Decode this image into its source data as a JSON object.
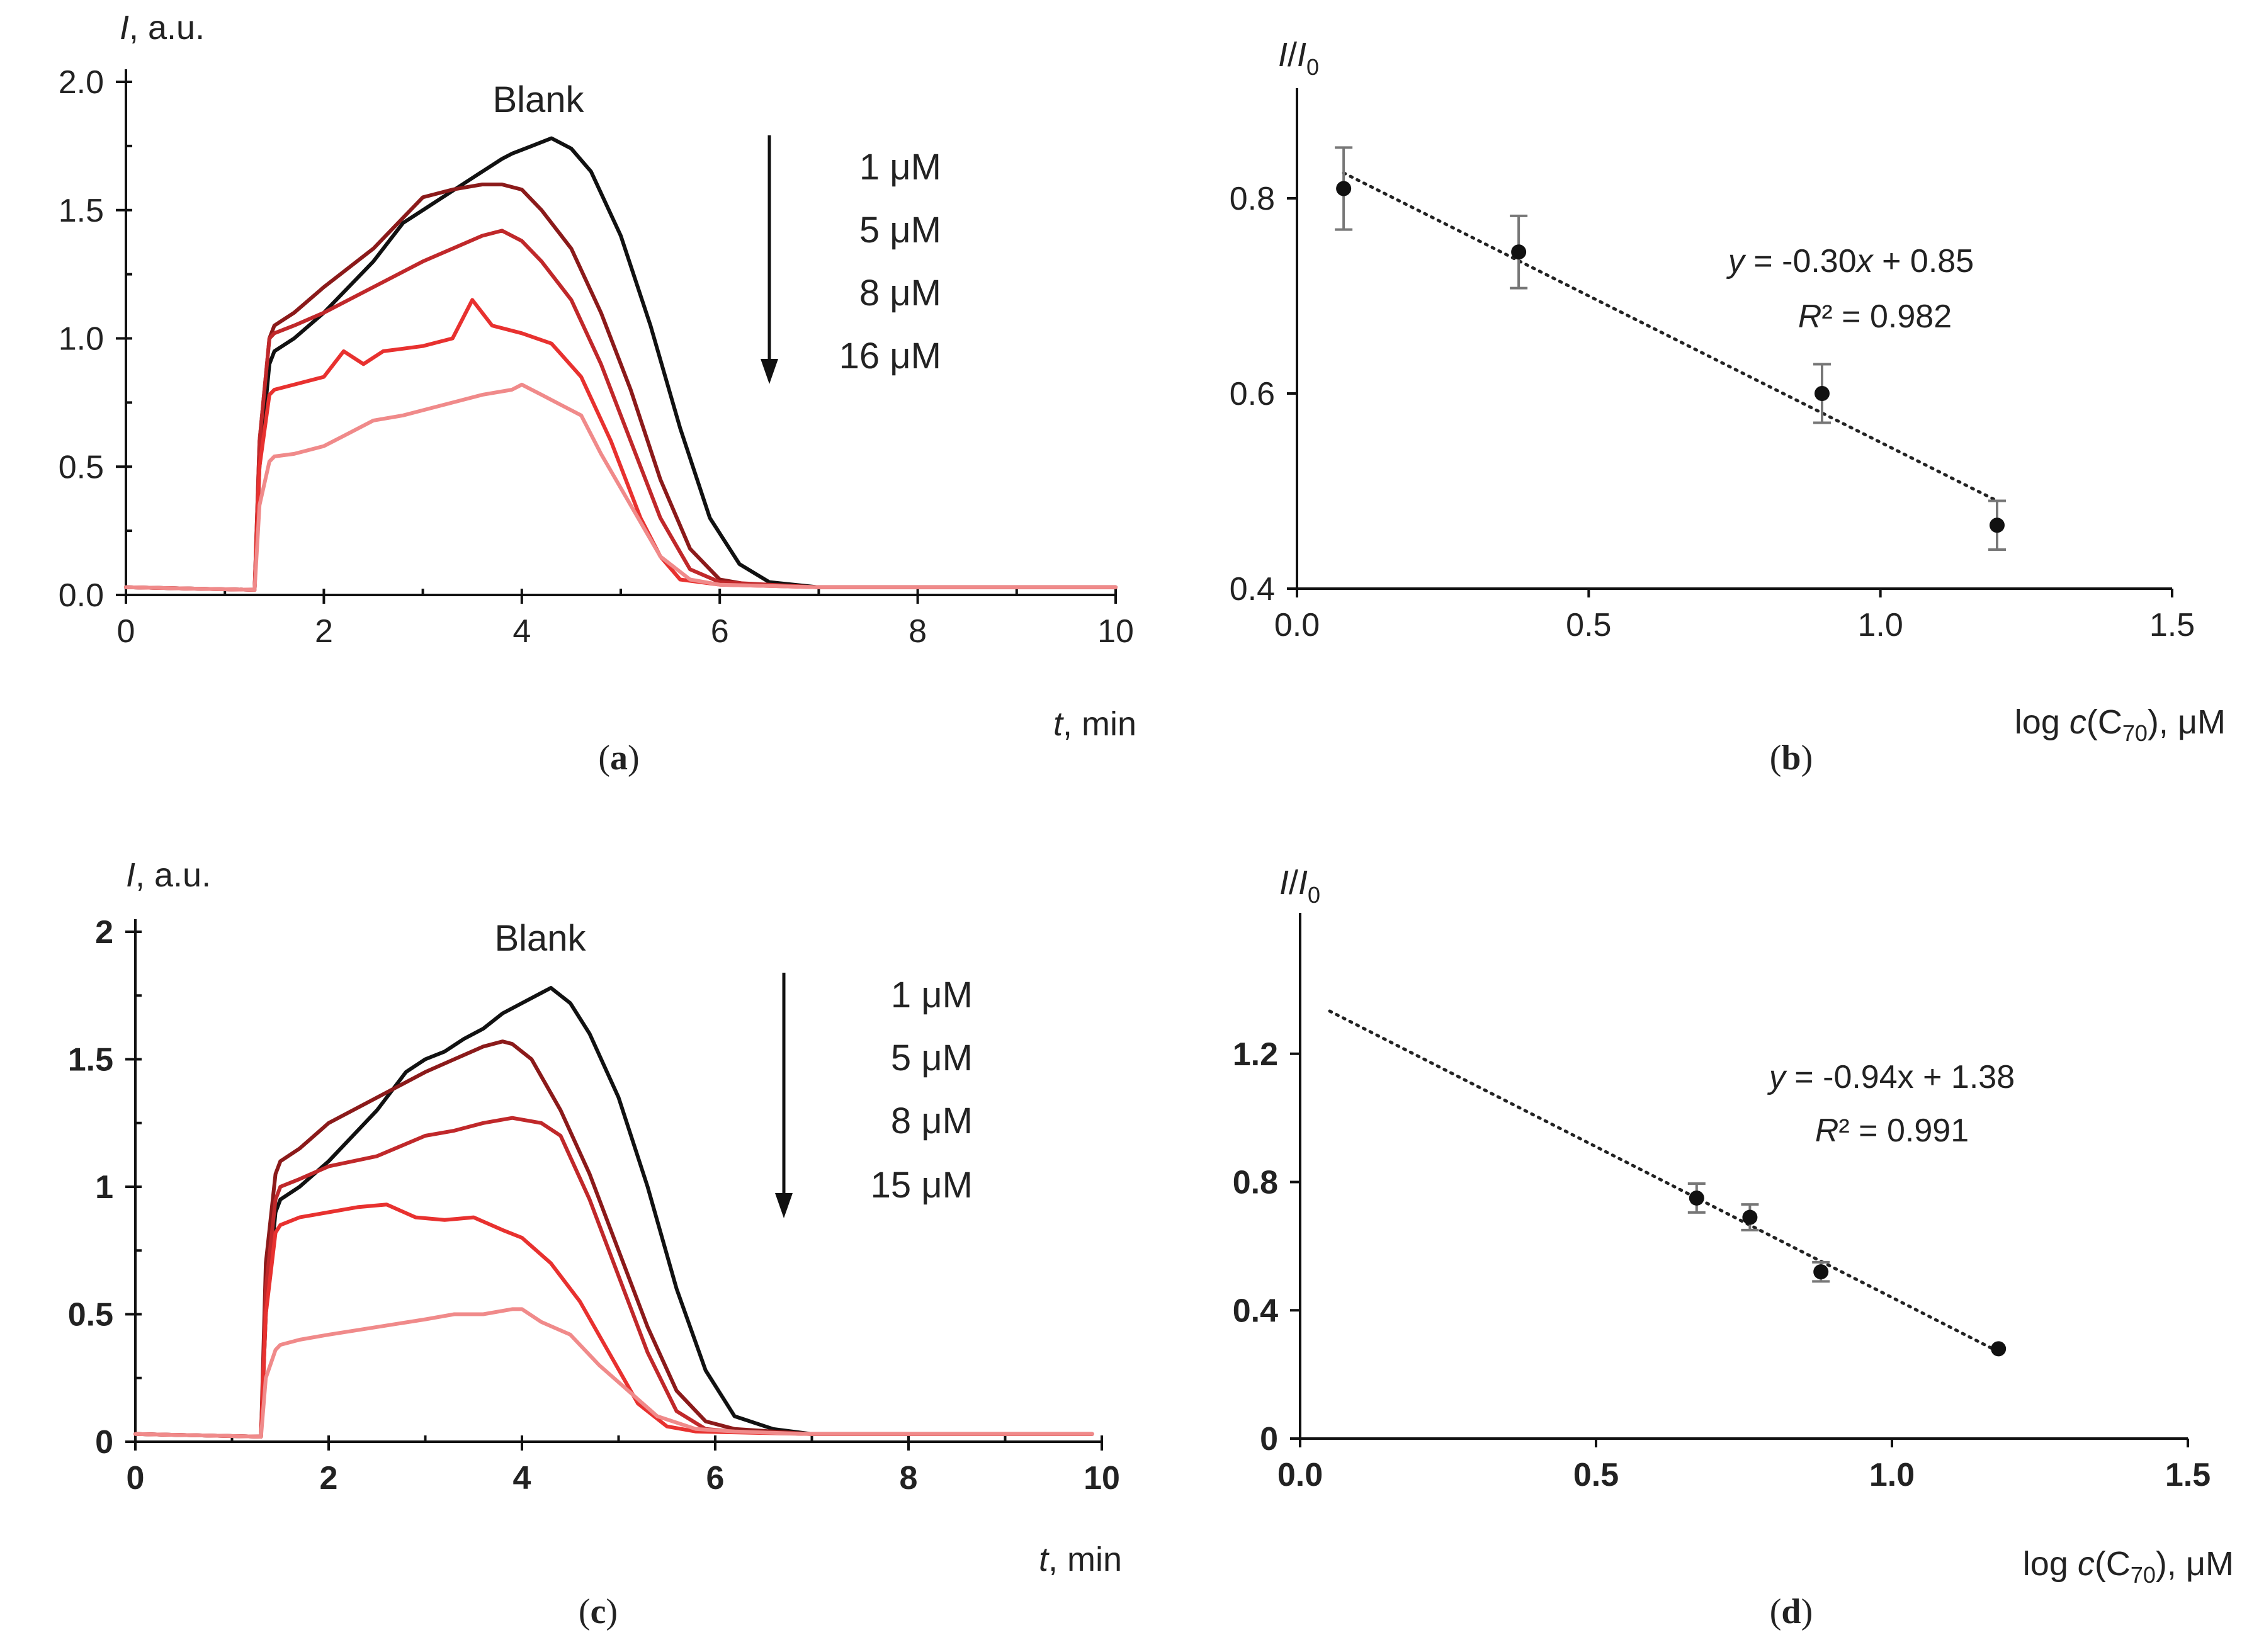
{
  "figure": {
    "colors": {
      "blank": "#111111",
      "c1": "#8b1a1a",
      "c2": "#c0282a",
      "c3": "#e8312f",
      "c4": "#f08a8a",
      "errorbar": "#777777"
    }
  },
  "chart_data": [
    {
      "panel": "a",
      "type": "line",
      "caption": "(a)",
      "caption_letter": "a",
      "ylabel_italic": "I",
      "ylabel_rest": ", a.u.",
      "xlabel_italic": "t",
      "xlabel_rest": ", min",
      "xlim": [
        0,
        10
      ],
      "ylim": [
        0,
        2.0
      ],
      "xticks": [
        "0",
        "2",
        "4",
        "6",
        "8",
        "10"
      ],
      "yticks": [
        "0.0",
        "0.5",
        "1.0",
        "1.5",
        "2.0"
      ],
      "blank_label": "Blank",
      "legend": [
        "1 μM",
        "5 μM",
        "8 μM",
        "16 μM"
      ],
      "series": [
        {
          "name": "Blank",
          "color": "#111111",
          "x": [
            0,
            1.3,
            1.35,
            1.45,
            1.5,
            1.7,
            2.0,
            2.5,
            2.8,
            3.0,
            3.2,
            3.4,
            3.6,
            3.8,
            3.9,
            4.1,
            4.3,
            4.5,
            4.7,
            5.0,
            5.3,
            5.6,
            5.9,
            6.2,
            6.5,
            7,
            8,
            9,
            10
          ],
          "y": [
            0.03,
            0.02,
            0.5,
            0.9,
            0.95,
            1.0,
            1.1,
            1.3,
            1.45,
            1.5,
            1.55,
            1.6,
            1.65,
            1.7,
            1.72,
            1.75,
            1.78,
            1.74,
            1.65,
            1.4,
            1.05,
            0.65,
            0.3,
            0.12,
            0.05,
            0.03,
            0.03,
            0.03,
            0.03
          ]
        },
        {
          "name": "1 μM",
          "color": "#8b1a1a",
          "x": [
            0,
            1.3,
            1.35,
            1.45,
            1.5,
            1.7,
            2.0,
            2.5,
            3.0,
            3.3,
            3.6,
            3.8,
            4.0,
            4.2,
            4.5,
            4.8,
            5.1,
            5.4,
            5.7,
            6.0,
            6.3,
            7,
            8,
            9,
            10
          ],
          "y": [
            0.03,
            0.02,
            0.6,
            1.0,
            1.05,
            1.1,
            1.2,
            1.35,
            1.55,
            1.58,
            1.6,
            1.6,
            1.58,
            1.5,
            1.35,
            1.1,
            0.8,
            0.45,
            0.18,
            0.06,
            0.04,
            0.03,
            0.03,
            0.03,
            0.03
          ]
        },
        {
          "name": "5 μM",
          "color": "#c0282a",
          "x": [
            0,
            1.3,
            1.35,
            1.45,
            1.5,
            1.7,
            2.0,
            2.5,
            3.0,
            3.3,
            3.6,
            3.8,
            4.0,
            4.2,
            4.5,
            4.8,
            5.1,
            5.4,
            5.7,
            6.0,
            7,
            8,
            9,
            10
          ],
          "y": [
            0.03,
            0.02,
            0.6,
            1.0,
            1.02,
            1.05,
            1.1,
            1.2,
            1.3,
            1.35,
            1.4,
            1.42,
            1.38,
            1.3,
            1.15,
            0.9,
            0.6,
            0.3,
            0.1,
            0.05,
            0.03,
            0.03,
            0.03,
            0.03
          ]
        },
        {
          "name": "8 μM",
          "color": "#e8312f",
          "x": [
            0,
            1.3,
            1.35,
            1.45,
            1.5,
            1.7,
            2.0,
            2.2,
            2.4,
            2.6,
            3.0,
            3.3,
            3.5,
            3.7,
            4.0,
            4.3,
            4.6,
            4.9,
            5.2,
            5.4,
            5.6,
            6.0,
            7,
            8,
            9,
            10
          ],
          "y": [
            0.03,
            0.02,
            0.5,
            0.78,
            0.8,
            0.82,
            0.85,
            0.95,
            0.9,
            0.95,
            0.97,
            1.0,
            1.15,
            1.05,
            1.02,
            0.98,
            0.85,
            0.6,
            0.3,
            0.15,
            0.06,
            0.04,
            0.03,
            0.03,
            0.03,
            0.03
          ]
        },
        {
          "name": "16 μM",
          "color": "#f08a8a",
          "x": [
            0,
            1.3,
            1.35,
            1.45,
            1.5,
            1.7,
            2.0,
            2.2,
            2.5,
            2.8,
            3.0,
            3.3,
            3.6,
            3.9,
            4.0,
            4.2,
            4.4,
            4.6,
            4.8,
            5.1,
            5.4,
            5.7,
            6.0,
            7,
            8,
            9,
            10
          ],
          "y": [
            0.03,
            0.02,
            0.35,
            0.52,
            0.54,
            0.55,
            0.58,
            0.62,
            0.68,
            0.7,
            0.72,
            0.75,
            0.78,
            0.8,
            0.82,
            0.78,
            0.74,
            0.7,
            0.55,
            0.35,
            0.15,
            0.06,
            0.04,
            0.03,
            0.03,
            0.03,
            0.03
          ]
        }
      ]
    },
    {
      "panel": "b",
      "type": "scatter",
      "caption": "(b)",
      "caption_letter": "b",
      "ylabel_italic_1": "I",
      "ylabel_sep": "/",
      "ylabel_italic_2": "I",
      "ylabel_sub": "0",
      "xlabel_pre": "log ",
      "xlabel_italic": "c",
      "xlabel_mid": "(C",
      "xlabel_sub": "70",
      "xlabel_post": "), μM",
      "xlim": [
        0,
        1.5
      ],
      "ylim": [
        0.4,
        0.9
      ],
      "xticks": [
        "0.0",
        "0.5",
        "1.0",
        "1.5"
      ],
      "yticks": [
        "0.4",
        "0.6",
        "0.8"
      ],
      "points": {
        "x": [
          0.08,
          0.38,
          0.9,
          1.2
        ],
        "y": [
          0.81,
          0.745,
          0.6,
          0.465
        ],
        "err": [
          0.042,
          0.037,
          0.03,
          0.025
        ]
      },
      "trendline": {
        "slope": -0.3,
        "intercept": 0.85,
        "x_range": [
          0.08,
          1.2
        ]
      },
      "equation_y": "y",
      "equation_text": " = -0.30",
      "equation_x": "x",
      "equation_tail": " + 0.85",
      "r2_italic": "R",
      "r2_text": "² = 0.982"
    },
    {
      "panel": "c",
      "type": "line",
      "caption": "(c)",
      "caption_letter": "c",
      "ylabel_italic": "I",
      "ylabel_rest": ", a.u.",
      "xlabel_italic": "t",
      "xlabel_rest": ", min",
      "xlim": [
        0,
        10
      ],
      "ylim": [
        0,
        2
      ],
      "xticks": [
        "0",
        "2",
        "4",
        "6",
        "8",
        "10"
      ],
      "yticks": [
        "0",
        "0.5",
        "1",
        "1.5",
        "2"
      ],
      "blank_label": "Blank",
      "legend": [
        "1 μM",
        "5 μM",
        "8 μM",
        "15 μM"
      ],
      "series": [
        {
          "name": "Blank",
          "color": "#111111",
          "x": [
            0,
            1.3,
            1.35,
            1.45,
            1.5,
            1.7,
            2.0,
            2.5,
            2.8,
            3.0,
            3.2,
            3.4,
            3.6,
            3.8,
            4.0,
            4.2,
            4.3,
            4.5,
            4.7,
            5.0,
            5.3,
            5.6,
            5.9,
            6.2,
            6.6,
            7,
            8,
            9,
            9.9
          ],
          "y": [
            0.03,
            0.02,
            0.5,
            0.9,
            0.95,
            1.0,
            1.1,
            1.3,
            1.45,
            1.5,
            1.53,
            1.58,
            1.62,
            1.68,
            1.72,
            1.76,
            1.78,
            1.72,
            1.6,
            1.35,
            1.0,
            0.6,
            0.28,
            0.1,
            0.05,
            0.03,
            0.03,
            0.03,
            0.03
          ]
        },
        {
          "name": "1 μM",
          "color": "#8b1a1a",
          "x": [
            0,
            1.3,
            1.35,
            1.45,
            1.5,
            1.7,
            2.0,
            2.5,
            3.0,
            3.3,
            3.6,
            3.8,
            3.9,
            4.1,
            4.4,
            4.7,
            5.0,
            5.3,
            5.6,
            5.9,
            6.2,
            7,
            8,
            9,
            9.9
          ],
          "y": [
            0.03,
            0.02,
            0.7,
            1.05,
            1.1,
            1.15,
            1.25,
            1.35,
            1.45,
            1.5,
            1.55,
            1.57,
            1.56,
            1.5,
            1.3,
            1.05,
            0.75,
            0.45,
            0.2,
            0.08,
            0.05,
            0.03,
            0.03,
            0.03,
            0.03
          ]
        },
        {
          "name": "5 μM",
          "color": "#c0282a",
          "x": [
            0,
            1.3,
            1.35,
            1.45,
            1.5,
            1.7,
            2.0,
            2.5,
            3.0,
            3.3,
            3.6,
            3.9,
            4.2,
            4.4,
            4.7,
            5.0,
            5.3,
            5.6,
            5.9,
            6.2,
            7,
            8,
            9,
            9.9
          ],
          "y": [
            0.03,
            0.02,
            0.6,
            0.95,
            1.0,
            1.03,
            1.08,
            1.12,
            1.2,
            1.22,
            1.25,
            1.27,
            1.25,
            1.2,
            0.95,
            0.65,
            0.35,
            0.12,
            0.05,
            0.04,
            0.03,
            0.03,
            0.03,
            0.03
          ]
        },
        {
          "name": "8 μM",
          "color": "#e8312f",
          "x": [
            0,
            1.3,
            1.35,
            1.45,
            1.5,
            1.7,
            2.0,
            2.3,
            2.6,
            2.9,
            3.2,
            3.5,
            3.8,
            4.0,
            4.3,
            4.6,
            4.9,
            5.2,
            5.5,
            5.8,
            7,
            8,
            9,
            9.9
          ],
          "y": [
            0.03,
            0.02,
            0.5,
            0.82,
            0.85,
            0.88,
            0.9,
            0.92,
            0.93,
            0.88,
            0.87,
            0.88,
            0.83,
            0.8,
            0.7,
            0.55,
            0.35,
            0.15,
            0.06,
            0.04,
            0.03,
            0.03,
            0.03,
            0.03
          ]
        },
        {
          "name": "15 μM",
          "color": "#f08a8a",
          "x": [
            0,
            1.3,
            1.35,
            1.45,
            1.5,
            1.7,
            2.0,
            2.5,
            3.0,
            3.3,
            3.6,
            3.9,
            4.0,
            4.2,
            4.5,
            4.8,
            5.1,
            5.4,
            5.8,
            6.2,
            7,
            8,
            9,
            9.9
          ],
          "y": [
            0.03,
            0.02,
            0.25,
            0.36,
            0.38,
            0.4,
            0.42,
            0.45,
            0.48,
            0.5,
            0.5,
            0.52,
            0.52,
            0.47,
            0.42,
            0.3,
            0.2,
            0.1,
            0.05,
            0.04,
            0.03,
            0.03,
            0.03,
            0.03
          ]
        }
      ]
    },
    {
      "panel": "d",
      "type": "scatter",
      "caption": "(d)",
      "caption_letter": "d",
      "ylabel_italic_1": "I",
      "ylabel_sep": "/",
      "ylabel_italic_2": "I",
      "ylabel_sub": "0",
      "xlabel_pre": "log ",
      "xlabel_italic": "c",
      "xlabel_mid": "(C",
      "xlabel_sub": "70",
      "xlabel_post": "), μM",
      "xlim": [
        0,
        1.5
      ],
      "ylim": [
        0,
        1.6
      ],
      "xticks": [
        "0.0",
        "0.5",
        "1.0",
        "1.5"
      ],
      "yticks": [
        "0",
        "0.4",
        "0.8",
        "1.2"
      ],
      "points": {
        "x": [
          0.67,
          0.76,
          0.88,
          1.18
        ],
        "y": [
          0.75,
          0.69,
          0.52,
          0.28
        ],
        "err": [
          0.045,
          0.04,
          0.03,
          0.0
        ]
      },
      "trendline": {
        "slope": -0.94,
        "intercept": 1.38,
        "x_range": [
          0.05,
          1.18
        ]
      },
      "equation_y": "y",
      "equation_text": " = -0.94x + 1.38",
      "r2_italic": "R",
      "r2_text": "² = 0.991"
    }
  ]
}
